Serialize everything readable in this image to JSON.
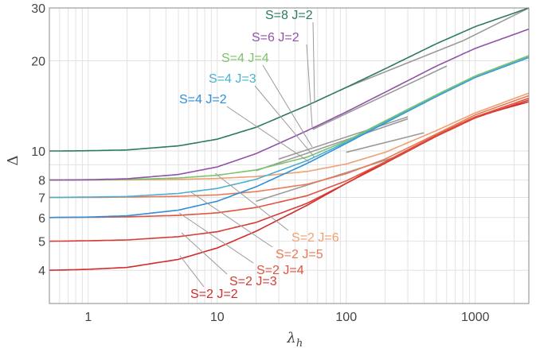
{
  "chart_data": {
    "type": "line",
    "xlabel": "λ_h",
    "ylabel": "Δ",
    "x_scale": "log",
    "y_scale": "log",
    "xlim": [
      0.5,
      2600
    ],
    "ylim": [
      3.1,
      30
    ],
    "xticks": [
      1,
      10,
      100,
      1000
    ],
    "xtick_labels": [
      "1",
      "10",
      "100",
      "1000"
    ],
    "yticks": [
      4,
      5,
      6,
      7,
      8,
      10,
      20,
      30
    ],
    "ytick_labels": [
      "4",
      "5",
      "6",
      "7",
      "8",
      "10",
      "20",
      "30"
    ],
    "grid": true,
    "series": [
      {
        "name": "S=2 J=2",
        "color": "#d42a2a",
        "x": [
          0.5,
          1,
          2,
          5,
          10,
          20,
          50,
          100,
          200,
          500,
          1000,
          2600
        ],
        "y": [
          4.0,
          4.03,
          4.09,
          4.35,
          4.75,
          5.4,
          6.6,
          7.8,
          9.2,
          11.3,
          13.0,
          14.6
        ]
      },
      {
        "name": "S=2 J=3",
        "color": "#d63c32",
        "x": [
          0.5,
          1,
          2,
          5,
          10,
          20,
          50,
          100,
          200,
          500,
          1000,
          2600
        ],
        "y": [
          5.0,
          5.02,
          5.05,
          5.18,
          5.38,
          5.78,
          6.7,
          7.8,
          9.1,
          11.2,
          12.9,
          14.8
        ]
      },
      {
        "name": "S=2 J=4",
        "color": "#e0533f",
        "x": [
          0.5,
          1,
          2,
          5,
          10,
          20,
          50,
          100,
          200,
          500,
          1000,
          2600
        ],
        "y": [
          6.0,
          6.01,
          6.03,
          6.1,
          6.22,
          6.48,
          7.1,
          7.95,
          9.2,
          11.3,
          13.0,
          15.0
        ]
      },
      {
        "name": "S=2 J=5",
        "color": "#ea7a56",
        "x": [
          0.5,
          1,
          2,
          5,
          10,
          20,
          50,
          100,
          200,
          500,
          1000,
          2600
        ],
        "y": [
          7.0,
          7.0,
          7.02,
          7.06,
          7.14,
          7.32,
          7.75,
          8.4,
          9.4,
          11.4,
          13.2,
          15.3
        ]
      },
      {
        "name": "S=2 J=6",
        "color": "#f0a070",
        "x": [
          0.5,
          1,
          2,
          5,
          10,
          20,
          50,
          100,
          200,
          500,
          1000,
          2600
        ],
        "y": [
          8.0,
          8.0,
          8.01,
          8.04,
          8.1,
          8.22,
          8.55,
          9.05,
          9.9,
          11.7,
          13.4,
          15.6
        ]
      },
      {
        "name": "S=4 J=2",
        "color": "#2f8fd8",
        "x": [
          0.5,
          1,
          2,
          5,
          10,
          20,
          50,
          100,
          200,
          500,
          1000,
          2600
        ],
        "y": [
          6.0,
          6.02,
          6.08,
          6.35,
          6.8,
          7.6,
          9.1,
          10.6,
          12.4,
          15.2,
          17.6,
          20.5
        ]
      },
      {
        "name": "S=4 J=3",
        "color": "#4bb0d0",
        "x": [
          0.5,
          1,
          2,
          5,
          10,
          20,
          50,
          100,
          200,
          500,
          1000,
          2600
        ],
        "y": [
          7.0,
          7.02,
          7.05,
          7.22,
          7.5,
          8.05,
          9.3,
          10.7,
          12.5,
          15.3,
          17.7,
          20.6
        ]
      },
      {
        "name": "S=4 J=4",
        "color": "#7cc36e",
        "x": [
          0.5,
          1,
          2,
          5,
          10,
          20,
          50,
          100,
          200,
          500,
          1000,
          2600
        ],
        "y": [
          8.0,
          8.01,
          8.03,
          8.13,
          8.3,
          8.65,
          9.55,
          10.8,
          12.6,
          15.4,
          17.8,
          20.8
        ]
      },
      {
        "name": "S=6 J=2",
        "color": "#8e52a8",
        "x": [
          0.5,
          1,
          2,
          5,
          10,
          20,
          50,
          100,
          200,
          500,
          1000,
          2600
        ],
        "y": [
          8.0,
          8.02,
          8.08,
          8.35,
          8.85,
          9.8,
          11.7,
          13.5,
          15.7,
          19.2,
          22.0,
          25.5
        ]
      },
      {
        "name": "S=8 J=2",
        "color": "#2a7a62",
        "x": [
          0.5,
          1,
          2,
          5,
          10,
          20,
          50,
          100,
          200,
          500,
          1000,
          2600
        ],
        "y": [
          10.0,
          10.02,
          10.08,
          10.4,
          10.95,
          12.0,
          14.2,
          16.3,
          18.8,
          22.8,
          26.0,
          30.0
        ]
      }
    ],
    "asymptotes": [
      {
        "x": [
          100,
          800
        ],
        "y": [
          16.3,
          23.3
        ]
      },
      {
        "x": [
          800,
          2600
        ],
        "y": [
          23.3,
          30.0
        ]
      },
      {
        "x": [
          55,
          600
        ],
        "y": [
          11.8,
          19.2
        ]
      },
      {
        "x": [
          30,
          300
        ],
        "y": [
          9.4,
          13.0
        ]
      },
      {
        "x": [
          20,
          300
        ],
        "y": [
          8.6,
          12.8
        ]
      },
      {
        "x": [
          20,
          250
        ],
        "y": [
          6.8,
          9.6
        ]
      },
      {
        "x": [
          100,
          400
        ],
        "y": [
          9.9,
          11.5
        ]
      }
    ],
    "labels": [
      {
        "text": "S=8 J=2",
        "color": "#2a7a62",
        "series": 9
      },
      {
        "text": "S=6 J=2",
        "color": "#8e52a8",
        "series": 8
      },
      {
        "text": "S=4 J=4",
        "color": "#7cc36e",
        "series": 7
      },
      {
        "text": "S=4 J=3",
        "color": "#4bb0d0",
        "series": 6
      },
      {
        "text": "S=4 J=2",
        "color": "#2f8fd8",
        "series": 5
      },
      {
        "text": "S=2 J=6",
        "color": "#f0a070",
        "series": 4
      },
      {
        "text": "S=2 J=5",
        "color": "#ea7a56",
        "series": 3
      },
      {
        "text": "S=2 J=4",
        "color": "#e0533f",
        "series": 2
      },
      {
        "text": "S=2 J=3",
        "color": "#d63c32",
        "series": 1
      },
      {
        "text": "S=2 J=2",
        "color": "#d42a2a",
        "series": 0
      }
    ]
  }
}
